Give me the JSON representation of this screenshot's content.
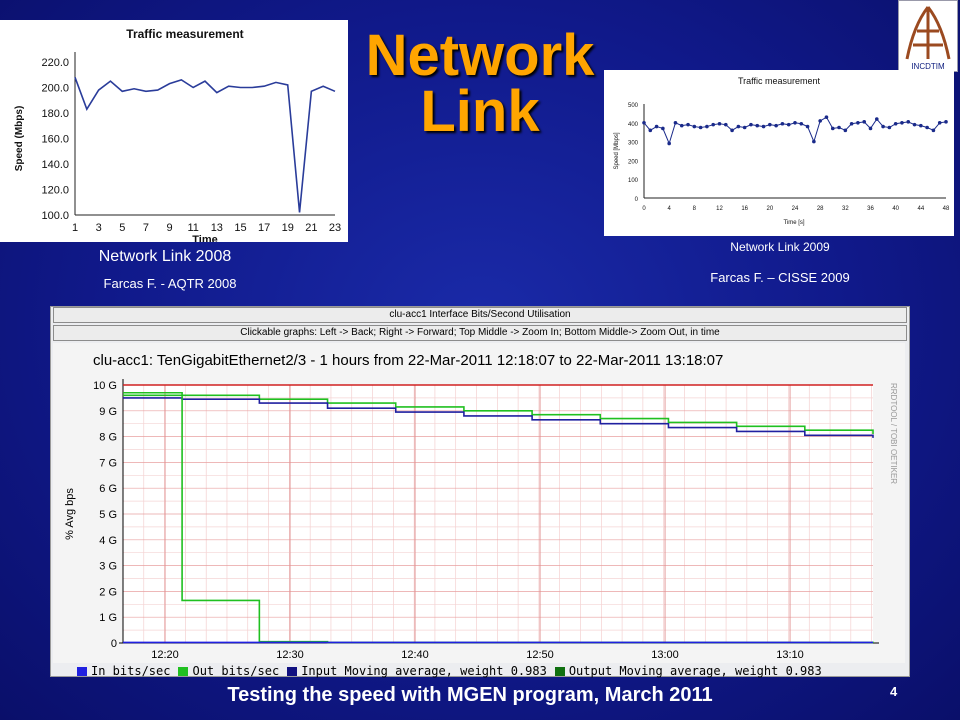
{
  "slide": {
    "title": "Network Link",
    "footer": "Testing the speed with MGEN program, March 2011",
    "page_number": "4",
    "logo_text": "INCDTIM"
  },
  "chart_2008": {
    "label": "Network Link 2008",
    "source": "Farcas F. - AQTR 2008"
  },
  "chart_2009": {
    "label": "Network Link 2009",
    "source": "Farcas F. – CISSE 2009"
  },
  "mrtg": {
    "header1": "clu-acc1 Interface Bits/Second Utilisation",
    "header2": "Clickable graphs: Left -> Back; Right -> Forward; Top Middle -> Zoom In; Bottom Middle-> Zoom Out, in time",
    "graph_title": "clu-acc1: TenGigabitEthernet2/3 - 1 hours from 22-Mar-2011 12:18:07 to 22-Mar-2011 13:18:07",
    "watermark": "RRDTOOL / TOBI OETIKER",
    "legend": [
      {
        "label": "In bits/sec",
        "color": "#2020e0"
      },
      {
        "label": "Out bits/sec",
        "color": "#20c020"
      },
      {
        "label": "Input Moving average, weight 0.983",
        "color": "#101080"
      },
      {
        "label": "Output Moving average, weight 0.983",
        "color": "#107010"
      }
    ]
  },
  "chart_data": [
    {
      "type": "line",
      "title": "Traffic measurement",
      "xlabel": "Time",
      "ylabel": "Speed (Mbps)",
      "x": [
        1,
        2,
        3,
        4,
        5,
        6,
        7,
        8,
        9,
        10,
        11,
        12,
        13,
        14,
        15,
        16,
        17,
        18,
        19,
        20,
        21,
        22,
        23
      ],
      "xticks": [
        "1",
        "3",
        "5",
        "7",
        "9",
        "11",
        "13",
        "15",
        "17",
        "19",
        "21",
        "23"
      ],
      "yticks": [
        "100.0",
        "120.0",
        "140.0",
        "160.0",
        "180.0",
        "200.0",
        "220.0"
      ],
      "ylim": [
        100,
        220
      ],
      "values": [
        208,
        183,
        198,
        205,
        197,
        199,
        197,
        198,
        203,
        206,
        200,
        205,
        196,
        201,
        200,
        200,
        201,
        204,
        202,
        102,
        197,
        201,
        197
      ]
    },
    {
      "type": "line",
      "title": "Traffic measurement",
      "xlabel": "Time [s]",
      "ylabel": "Speed [Mbps]",
      "xticks": [
        "0",
        "4",
        "8",
        "12",
        "16",
        "20",
        "24",
        "28",
        "32",
        "36",
        "40",
        "44",
        "48"
      ],
      "yticks": [
        "0",
        "100",
        "200",
        "300",
        "400",
        "500"
      ],
      "ylim": [
        0,
        500
      ],
      "xlim": [
        0,
        48
      ],
      "x": [
        0,
        1,
        2,
        3,
        4,
        5,
        6,
        7,
        8,
        9,
        10,
        11,
        12,
        13,
        14,
        15,
        16,
        17,
        18,
        19,
        20,
        21,
        22,
        23,
        24,
        25,
        26,
        27,
        28,
        29,
        30,
        31,
        32,
        33,
        34,
        35,
        36,
        37,
        38,
        39,
        40,
        41,
        42,
        43,
        44,
        45,
        46,
        47,
        48
      ],
      "values": [
        400,
        360,
        380,
        370,
        290,
        400,
        385,
        390,
        380,
        375,
        380,
        390,
        395,
        390,
        360,
        380,
        375,
        390,
        385,
        380,
        390,
        385,
        395,
        390,
        400,
        395,
        380,
        300,
        410,
        430,
        370,
        375,
        360,
        395,
        400,
        405,
        370,
        420,
        380,
        375,
        395,
        400,
        405,
        390,
        385,
        375,
        360,
        400,
        405
      ]
    },
    {
      "type": "line",
      "title": "clu-acc1: TenGigabitEthernet2/3 - 1 hours from 22-Mar-2011 12:18:07 to 22-Mar-2011 13:18:07",
      "ylabel": "% Avg bps",
      "yticks": [
        "0",
        "1 G",
        "2 G",
        "3 G",
        "4 G",
        "5 G",
        "6 G",
        "7 G",
        "8 G",
        "9 G",
        "10 G"
      ],
      "xticks": [
        "12:20",
        "12:30",
        "12:40",
        "12:50",
        "13:00",
        "13:10"
      ],
      "ylim": [
        0,
        10
      ],
      "xlim_minutes": [
        12.2,
        16.2
      ],
      "max_line": 10,
      "series": [
        {
          "name": "Output Moving average, weight 0.983",
          "steps": [
            [
              0,
              9.7
            ],
            [
              5.2,
              9.6
            ],
            [
              12,
              9.45
            ],
            [
              18,
              9.3
            ],
            [
              24,
              9.15
            ],
            [
              30,
              9.0
            ],
            [
              36,
              8.85
            ],
            [
              42,
              8.7
            ],
            [
              48,
              8.55
            ],
            [
              54,
              8.4
            ],
            [
              60,
              8.25
            ],
            [
              66,
              8.1
            ]
          ]
        },
        {
          "name": "Input Moving average, weight 0.983",
          "steps": [
            [
              0,
              9.5
            ],
            [
              5.2,
              9.45
            ],
            [
              12,
              9.3
            ],
            [
              18,
              9.1
            ],
            [
              24,
              8.95
            ],
            [
              30,
              8.8
            ],
            [
              36,
              8.65
            ],
            [
              42,
              8.5
            ],
            [
              48,
              8.35
            ],
            [
              54,
              8.2
            ],
            [
              60,
              8.05
            ],
            [
              66,
              7.95
            ]
          ]
        },
        {
          "name": "Out bits/sec",
          "steps": [
            [
              0,
              9.6
            ],
            [
              5.2,
              1.65
            ],
            [
              12,
              0.05
            ],
            [
              18,
              0.02
            ],
            [
              66,
              0.0
            ]
          ]
        },
        {
          "name": "In bits/sec",
          "steps": [
            [
              0,
              0.02
            ],
            [
              66,
              0.02
            ]
          ]
        }
      ]
    }
  ]
}
